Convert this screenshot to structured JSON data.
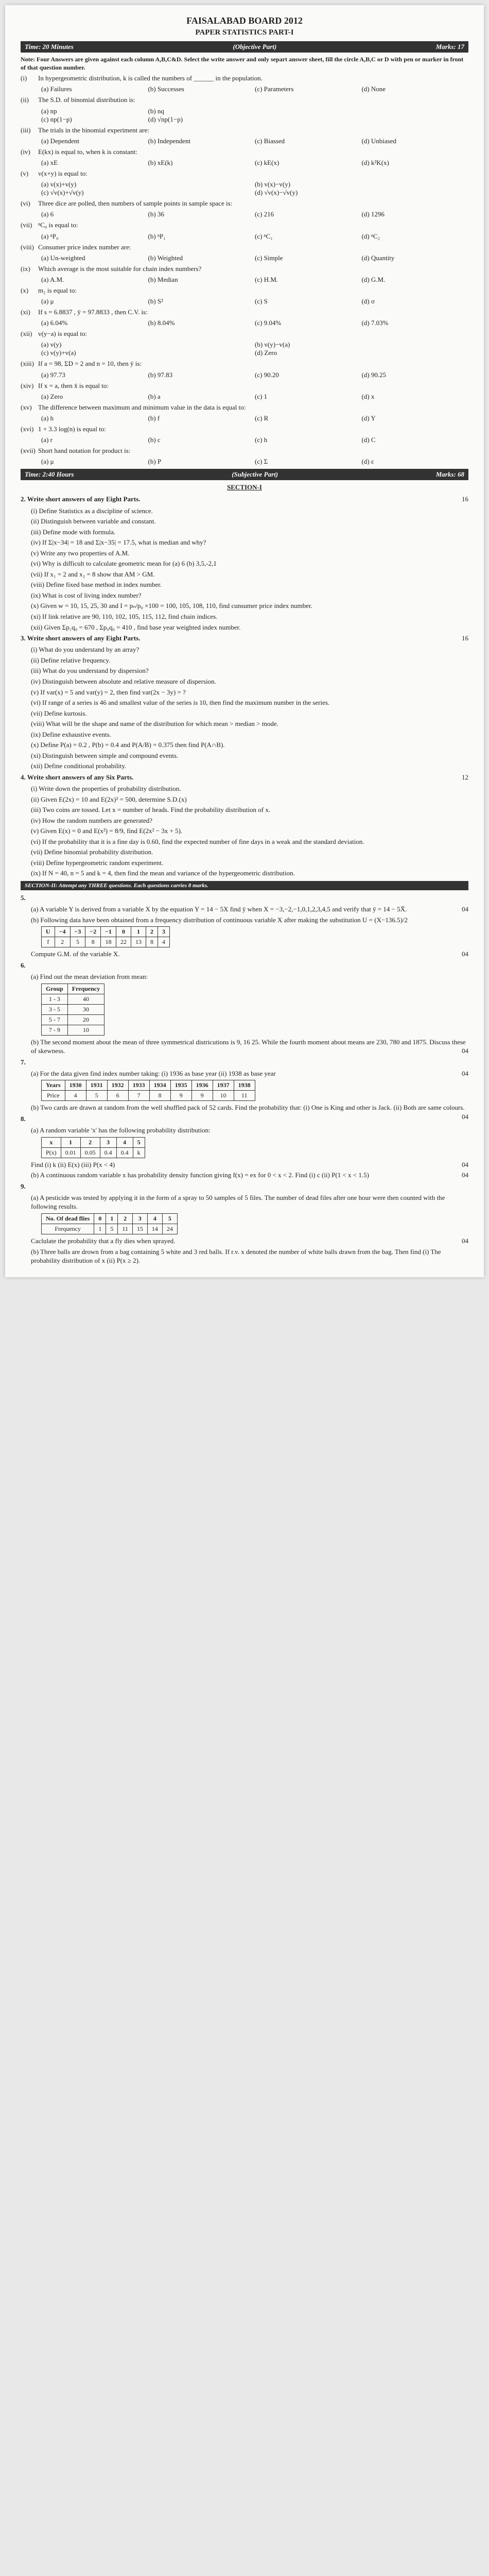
{
  "header": "FAISALABAD BOARD 2012",
  "subheader": "PAPER STATISTICS PART-I",
  "obj_bar": {
    "time": "Time: 20 Minutes",
    "part": "(Objective Part)",
    "marks": "Marks: 17"
  },
  "note": "Note: Four Answers are given against each column A,B,C&D. Select the write answer and only separt answer sheet, fill the circle A,B,C or D with pen or marker in front of that question number.",
  "objQ": [
    {
      "n": "(i)",
      "t": "In hypergeometric distribution, k is called the numbers of ______ in the population.",
      "o": [
        "(a) Failures",
        "(b) Successes",
        "(c) Parameters",
        "(d) None"
      ]
    },
    {
      "n": "(ii)",
      "t": "The S.D. of binomial distribution is:",
      "o": [
        "(a) np",
        "(b) nq",
        "",
        ""
      ]
    },
    {
      "n": "",
      "t": "",
      "o": [
        "(c) np(1−p)",
        "(d) √np(1−p)",
        "",
        ""
      ]
    },
    {
      "n": "(iii)",
      "t": "The trials in the binomial experiment are:",
      "o": [
        "(a) Dependent",
        "(b) Independent",
        "(c) Biassed",
        "(d) Unbiased"
      ]
    },
    {
      "n": "(iv)",
      "t": "E(kx) is equal to, when k is constant:",
      "o": [
        "(a) xE",
        "(b) xE(k)",
        "(c) kE(x)",
        "(d) k²K(x)"
      ]
    },
    {
      "n": "(v)",
      "t": "v(x+y) is equal to:",
      "o": [
        "(a) v(x)+v(y)",
        "",
        "(b) v(x)−v(y)",
        ""
      ]
    },
    {
      "n": "",
      "t": "",
      "o": [
        "(c) √v(x)+√v(y)",
        "",
        "(d) √v(x)−√v(y)",
        ""
      ]
    },
    {
      "n": "(vi)",
      "t": "Three dice are polled, then numbers of sample points in sample space is:",
      "o": [
        "(a) 6",
        "(b) 36",
        "(c) 216",
        "(d) 1296"
      ]
    },
    {
      "n": "(vii)",
      "t": "ⁿC₀ is equal to:",
      "o": [
        "(a) ⁿP₀",
        "(b) ⁿP₁",
        "(c) ⁿC₁",
        "(d) ⁿC₂"
      ]
    },
    {
      "n": "(viii)",
      "t": "Consumer price index number are:",
      "o": [
        "(a) Un-weighted",
        "(b) Weighted",
        "(c) Simple",
        "(d) Quantity"
      ]
    },
    {
      "n": "(ix)",
      "t": "Which average is the most suitable for chain index numbers?",
      "o": [
        "(a) A.M.",
        "(b) Median",
        "(c) H.M.",
        "(d) G.M."
      ]
    },
    {
      "n": "(x)",
      "t": "m₂ is equal to:",
      "o": [
        "(a) μ",
        "(b) S²",
        "(c) S",
        "(d) σ"
      ]
    },
    {
      "n": "(xi)",
      "t": "If s = 6.8837 , ȳ = 97.8833 , then C.V. is:",
      "o": [
        "(a) 6.04%",
        "(b) 8.04%",
        "(c) 9.04%",
        "(d) 7.03%"
      ]
    },
    {
      "n": "(xii)",
      "t": "v(y−a) is equal to:",
      "o": [
        "(a) v(y)",
        "",
        "(b) v(y)−v(a)",
        ""
      ]
    },
    {
      "n": "",
      "t": "",
      "o": [
        "(c) v(y)+v(a)",
        "",
        "(d) Zero",
        ""
      ]
    },
    {
      "n": "(xiii)",
      "t": "If a = 98, ΣD = 2 and n = 10, then ȳ is:",
      "o": [
        "(a) 97.73",
        "(b) 97.83",
        "(c) 90.20",
        "(d) 90.25"
      ]
    },
    {
      "n": "(xiv)",
      "t": "If x = a, then x̄ is equal to:",
      "o": [
        "(a) Zero",
        "(b) a",
        "(c) 1",
        "(d) x"
      ]
    },
    {
      "n": "(xv)",
      "t": "The difference between maximum and minimum value in the data is equal to:",
      "o": [
        "(a) h",
        "(b) f",
        "(c) R",
        "(d) Y"
      ]
    },
    {
      "n": "(xvi)",
      "t": "1 + 3.3 log(n) is equal to:",
      "o": [
        "(a) r",
        "(b) c",
        "(c) h",
        "(d) C"
      ]
    },
    {
      "n": "(xvii)",
      "t": "Short hand notation for product is:",
      "o": [
        "(a) μ",
        "(b) P",
        "(c) Σ",
        "(d) ε"
      ]
    }
  ],
  "subj_bar": {
    "time": "Time: 2:40 Hours",
    "part": "(Subjective Part)",
    "marks": "Marks: 68"
  },
  "sec1": "SECTION-I",
  "q2": {
    "t": "2. Write short answers of any Eight Parts.",
    "m": "16",
    "items": [
      "(i) Define Statistics as a discipline of science.",
      "(ii) Distinguish between variable and constant.",
      "(iii) Define mode with formula.",
      "(iv) If Σ|x−34| = 18 and Σ|x−35| = 17.5, what is median and why?",
      "(v) Write any two properties of A.M.",
      "(vi) Why is difficult to calculate geometric mean for (a) 6 (b) 3,5,-2,1",
      "(vii) If x₁ = 2 and x₂ = 8 show that AM > GM.",
      "(viii) Define fixed base method in index number.",
      "(ix) What is cost of living index number?",
      "(x) Given w = 10, 15, 25, 30 and I = pₙ/p₀ ×100 = 100, 105, 108, 110, find cunsumer price index number.",
      "(xi) If link relative are 90, 110, 102, 105, 115, 112, find chain indices.",
      "(xii) Given Σp₁q₀ = 670 , Σp₀q₀ = 410 , find base year weighted index number."
    ]
  },
  "q3": {
    "t": "3. Write short answers of any Eight Parts.",
    "m": "16",
    "items": [
      "(i) What do you understand by an array?",
      "(ii) Define relative frequency.",
      "(iii) What do you understand by dispersion?",
      "(iv) Distinguish between absolute and relative measure of dispersion.",
      "(v) If var(x) = 5 and var(y) = 2, then find var(2x − 3y) = ?",
      "(vi) If range of a series is 46 and smallest value of the series is 10, then find the maximum number in the series.",
      "(vii) Define kurtosis.",
      "(viii) What will be the shape and name of the distribution for which mean > median > mode.",
      "(ix) Define exhaustive events.",
      "(x) Define P(a) = 0.2 , P(b) = 0.4 and P(A/B) = 0.375 then find P(A∩B).",
      "(xi) Distinguish between simple and compound events.",
      "(xii) Define conditional probability."
    ]
  },
  "q4": {
    "t": "4. Write short answers of any Six Parts.",
    "m": "12",
    "items": [
      "(i) Write down the properties of probability distribution.",
      "(ii) Given E(2x) = 10 and E(2x)² = 500, determine S.D.(x)",
      "(iii) Two coins are tossed. Let x = number of heads. Find the probability distribution of x.",
      "(iv) How the random numbers are generated?",
      "(v) Given E(x) = 0 and E(x²) = 8/9, find E(2x² − 3x + 5).",
      "(vi) If the probability that it is a fine day is 0.60, find the expected number of fine days in a weak and the standard deviation.",
      "(vii) Define binomial probability distribution.",
      "(viii) Define hypergeometric random experiment.",
      "(ix) If N = 40, n = 5 and k = 4, then find the mean and variance of the hypergeometric distribution."
    ]
  },
  "sec2": "SECTION-II: Attempt any THREE questions. Each questions carries 8 marks.",
  "q5a": "(a) A variable Y is derived from a variable X by the equation Y = 14 − 5X find ȳ when X = −3,−2,−1,0,1,2,3,4,5 and verify that ȳ = 14 − 5X̄.",
  "q5a_m": "04",
  "q5b": "(b) Following data have been obtained from a frequency distribution of continuous variable X after making the substitution U = (X−136.5)/2",
  "t5": {
    "h": [
      "U",
      "−4",
      "−3",
      "−2",
      "−1",
      "0",
      "1",
      "2",
      "3"
    ],
    "r": [
      "f",
      "2",
      "5",
      "8",
      "18",
      "22",
      "13",
      "8",
      "4"
    ]
  },
  "q5c": "Compute G.M. of the variable X.",
  "q5c_m": "04",
  "q6a": "(a) Find out the mean deviation from mean:",
  "t6": {
    "h": [
      "Group",
      "Frequency"
    ],
    "r": [
      [
        "1 - 3",
        "40"
      ],
      [
        "3 - 5",
        "30"
      ],
      [
        "5 - 7",
        "20"
      ],
      [
        "7 - 9",
        "10"
      ]
    ]
  },
  "q6b": "(b) The second moment about the mean of three symmetrical districutions is 9, 16 25. While the fourth moment about means are 230, 780 and 1875. Discuss these of skewness.",
  "q6b_m": "04",
  "q7a": "(a) For the data given find index number taking: (i) 1936 as base year (ii) 1938 as base year",
  "q7a_m": "04",
  "t7": {
    "h": [
      "Years",
      "1930",
      "1931",
      "1932",
      "1933",
      "1934",
      "1935",
      "1936",
      "1937",
      "1938"
    ],
    "r": [
      "Price",
      "4",
      "5",
      "6",
      "7",
      "8",
      "9",
      "9",
      "10",
      "11"
    ]
  },
  "q7b": "(b) Two cards are drawn at random from the well shuffled pack of 52 cards. Find the probability that: (i) One is King and other is Jack. (ii) Both are same colours.",
  "q7b_m": "04",
  "q8a": "(a) A random variable 'x' has the following probability distribution:",
  "t8": {
    "h": [
      "x",
      "1",
      "2",
      "3",
      "4",
      "5"
    ],
    "r": [
      "P(x)",
      "0.01",
      "0.05",
      "0.4",
      "0.4",
      "k"
    ]
  },
  "q8a2": "Find (i) k (ii) E(x) (iii) P(x < 4)",
  "q8a_m": "04",
  "q8b": "(b) A continuous random variable x has probability density function giving f(x) = ex for 0 < x < 2. Find (i) c (ii) P(1 < x < 1.5)",
  "q8b_m": "04",
  "q9a": "(a) A pesticide was tested by applying it in the form of a spray to 50 samples of 5 files. The number of dead files after one hour were then counted with the following results.",
  "t9": {
    "h": [
      "No. Of dead flies",
      "0",
      "1",
      "2",
      "3",
      "4",
      "5"
    ],
    "r": [
      "Frequency",
      "1",
      "5",
      "11",
      "15",
      "14",
      "24"
    ]
  },
  "q9a2": "Caclulate the probability that a fly dies when sprayed.",
  "q9a_m": "04",
  "q9b": "(b) Three balls are drown from a bag containing 5 white and 3 red balls. If r.v. x denoted the number of white balls drawn from the bag. Then find (i) The probability distribution of x (ii) P(x ≥ 2).",
  "q9b_m": ""
}
